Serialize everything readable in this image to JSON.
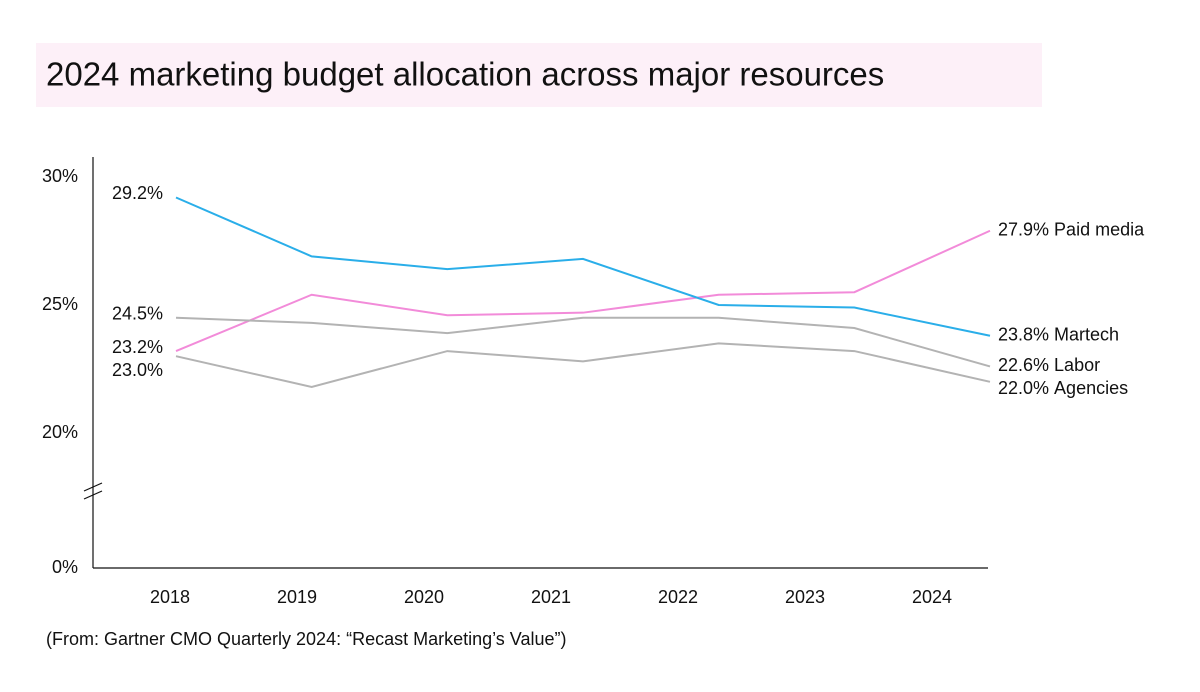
{
  "chart_data": {
    "type": "line",
    "title": "2024 marketing budget allocation across major resources",
    "source": "(From: Gartner CMO Quarterly 2024: “Recast Marketing’s Value”)",
    "categories": [
      "2018",
      "2019",
      "2020",
      "2021",
      "2022",
      "2023",
      "2024"
    ],
    "ylim": [
      0,
      30
    ],
    "axis_break": [
      0,
      20
    ],
    "yticks": [
      {
        "value": 0,
        "label": "0%"
      },
      {
        "value": 20,
        "label": "20%"
      },
      {
        "value": 25,
        "label": "25%"
      },
      {
        "value": 30,
        "label": "30%"
      }
    ],
    "grid": false,
    "series": [
      {
        "name": "Paid media",
        "color": "#f28bd9",
        "values": [
          23.2,
          25.4,
          24.6,
          24.7,
          25.4,
          25.5,
          27.9
        ],
        "value_labels": [
          "23.2%",
          null,
          null,
          null,
          null,
          null,
          "27.9%"
        ]
      },
      {
        "name": "Martech",
        "color": "#2aaee9",
        "values": [
          29.2,
          26.9,
          26.4,
          26.8,
          25.0,
          24.9,
          23.8
        ],
        "value_labels": [
          "29.2%",
          null,
          null,
          null,
          null,
          null,
          "23.8%"
        ]
      },
      {
        "name": "Labor",
        "color": "#b3b3b3",
        "values": [
          24.5,
          24.3,
          23.9,
          24.5,
          24.5,
          24.1,
          22.6
        ],
        "value_labels": [
          "24.5%",
          null,
          null,
          null,
          null,
          null,
          "22.6%"
        ]
      },
      {
        "name": "Agencies",
        "color": "#b3b3b3",
        "values": [
          23.0,
          21.8,
          23.2,
          22.8,
          23.5,
          23.2,
          22.0
        ],
        "value_labels": [
          "23.0%",
          null,
          null,
          null,
          null,
          null,
          "22.0%"
        ]
      }
    ]
  }
}
